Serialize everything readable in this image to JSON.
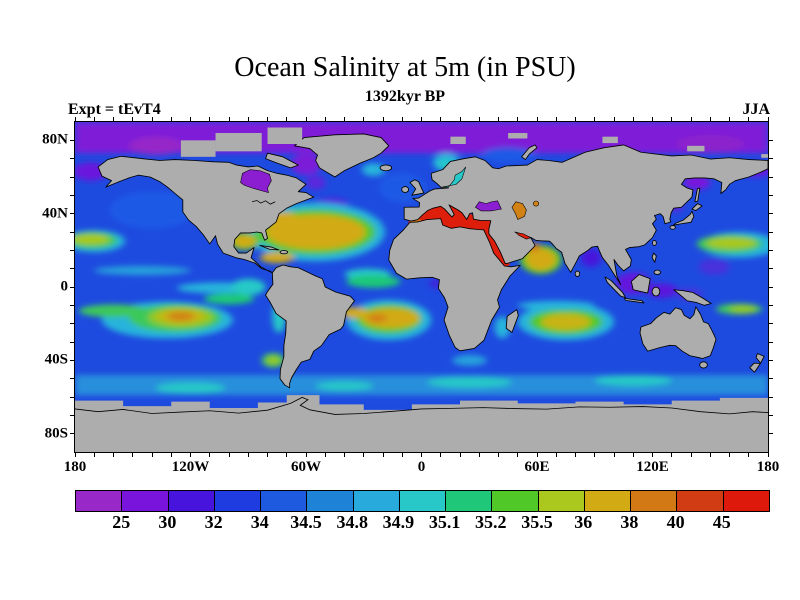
{
  "header": {
    "title": "Ocean Salinity at 5m (in PSU)",
    "subtitle": "1392kyr BP",
    "experiment_label": "Expt = tEvT4",
    "season_label": "JJA"
  },
  "axes": {
    "lat_labels": [
      {
        "text": "80N",
        "lat": 80
      },
      {
        "text": "40N",
        "lat": 40
      },
      {
        "text": "0",
        "lat": 0
      },
      {
        "text": "40S",
        "lat": -40
      },
      {
        "text": "80S",
        "lat": -80
      }
    ],
    "lon_labels": [
      {
        "text": "180",
        "lon": -180
      },
      {
        "text": "120W",
        "lon": -120
      },
      {
        "text": "60W",
        "lon": -60
      },
      {
        "text": "0",
        "lon": 0
      },
      {
        "text": "60E",
        "lon": 60
      },
      {
        "text": "120E",
        "lon": 120
      },
      {
        "text": "180",
        "lon": 180
      }
    ],
    "minor_tick_interval_deg": 10
  },
  "colorbar": {
    "boundary_labels": [
      "25",
      "30",
      "32",
      "34",
      "34.5",
      "34.8",
      "34.9",
      "35.1",
      "35.2",
      "35.5",
      "36",
      "38",
      "40",
      "45"
    ],
    "segment_colors": [
      "#9828C8",
      "#7814DC",
      "#4614DC",
      "#1E3CDF",
      "#1E5ADF",
      "#1E82D7",
      "#28AADC",
      "#28C8C8",
      "#1EC878",
      "#50C828",
      "#AAC81E",
      "#D2AA14",
      "#D27814",
      "#D23C14",
      "#DC190A"
    ]
  },
  "map": {
    "land_color": "#ADADAD",
    "ocean_base_color": "#1E4BDF",
    "coastline_color": "#000000",
    "no_data_color": "#ADADAD"
  },
  "chart_data": {
    "type": "heatmap",
    "title": "Ocean Salinity at 5m (in PSU)",
    "subtitle": "1392kyr BP",
    "experiment": "Expt = tEvT4",
    "season": "JJA",
    "units": "PSU",
    "projection": "equirectangular world map",
    "lon_range": [
      -180,
      180
    ],
    "lat_range": [
      -90,
      90
    ],
    "level_boundaries": [
      25,
      30,
      32,
      34,
      34.5,
      34.8,
      34.9,
      35.1,
      35.2,
      35.5,
      36,
      38,
      40,
      45
    ],
    "palette": [
      "#9828C8",
      "#7814DC",
      "#4614DC",
      "#1E3CDF",
      "#1E5ADF",
      "#1E82D7",
      "#28AADC",
      "#28C8C8",
      "#1EC878",
      "#50C828",
      "#AAC81E",
      "#D2AA14",
      "#D27814",
      "#D23C14",
      "#DC190A"
    ],
    "legend_position": "bottom",
    "regional_values": [
      {
        "region": "Arctic Ocean band",
        "approx_psu": "25-30"
      },
      {
        "region": "Hudson Bay",
        "approx_psu": "25-30"
      },
      {
        "region": "Black Sea",
        "approx_psu": "25-30"
      },
      {
        "region": "Sea of Okhotsk / Bering Sea",
        "approx_psu": "30-32"
      },
      {
        "region": "Indonesian seas / Bay of Bengal",
        "approx_psu": "30-32"
      },
      {
        "region": "Mid-latitude open ocean",
        "approx_psu": "34-35.2"
      },
      {
        "region": "North Atlantic subtropical gyre",
        "approx_psu": "36-38"
      },
      {
        "region": "Gulf of Mexico / Caribbean",
        "approx_psu": "36-38"
      },
      {
        "region": "South Atlantic gyre",
        "approx_psu": "36-40"
      },
      {
        "region": "South Pacific gyre (center)",
        "approx_psu": "38-40"
      },
      {
        "region": "South Indian Ocean gyre",
        "approx_psu": "35.5-38"
      },
      {
        "region": "North Pacific subtropical band",
        "approx_psu": "35.5-36"
      },
      {
        "region": "Arabian Sea",
        "approx_psu": "36-40"
      },
      {
        "region": "Caspian Sea",
        "approx_psu": "38-40"
      },
      {
        "region": "Mediterranean Sea",
        "approx_psu": ">45"
      },
      {
        "region": "Red Sea / Persian Gulf",
        "approx_psu": ">45"
      },
      {
        "region": "Polar ice & land",
        "approx_psu": "masked (gray)"
      }
    ]
  }
}
